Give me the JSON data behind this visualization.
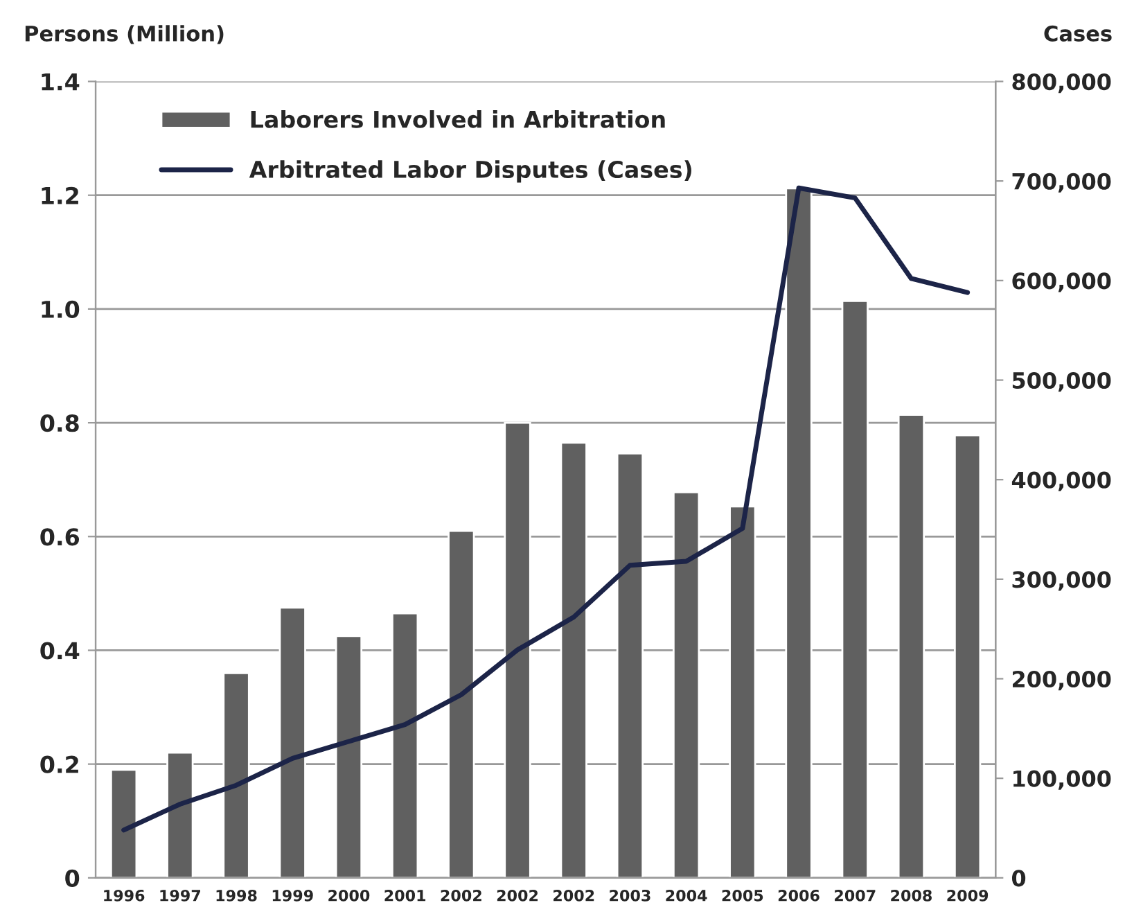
{
  "chart_data": {
    "type": "bar",
    "ylabel": "Persons (Million)",
    "y2label": "Cases",
    "categories": [
      "1996",
      "1997",
      "1998",
      "1999",
      "2000",
      "2001",
      "2002",
      "2002",
      "2002",
      "2003",
      "2004",
      "2005",
      "2006",
      "2007",
      "2008",
      "2009"
    ],
    "series": [
      {
        "name": "Laborers Involved in Arbitration",
        "color": "#606060",
        "values": [
          0.19,
          0.22,
          0.36,
          0.475,
          0.425,
          0.465,
          0.61,
          0.8,
          0.765,
          0.746,
          0.678,
          0.653,
          1.212,
          1.014,
          0.814,
          0.778
        ]
      },
      {
        "name": "Arbitrated Labor Disputes (Cases)",
        "type": "line",
        "axis": "y2",
        "color": "#1c2448",
        "values": [
          48000,
          74000,
          93000,
          120000,
          137000,
          154000,
          184000,
          229000,
          262000,
          314000,
          318000,
          351000,
          693000,
          683000,
          602000,
          588000
        ]
      }
    ],
    "ylim": [
      0,
      1.4
    ],
    "yticks": [
      {
        "value": 0,
        "label": "0"
      },
      0.2,
      0.4,
      0.6,
      0.8,
      {
        "value": 1.0,
        "label": "1.0"
      },
      1.2,
      1.4
    ],
    "y2lim": [
      0,
      800000
    ],
    "y2ticks": [
      {
        "value": 0,
        "label": "0"
      },
      {
        "value": 100000,
        "label": "100,000"
      },
      {
        "value": 200000,
        "label": "200,000"
      },
      {
        "value": 300000,
        "label": "300,000"
      },
      {
        "value": 400000,
        "label": "400,000"
      },
      {
        "value": 500000,
        "label": "500,000"
      },
      {
        "value": 600000,
        "label": "600,000"
      },
      {
        "value": 700000,
        "label": "700,000"
      },
      {
        "value": 800000,
        "label": "800,000"
      }
    ],
    "grid": "y",
    "legend": "top left",
    "marker": "none",
    "line_style": "solid"
  }
}
